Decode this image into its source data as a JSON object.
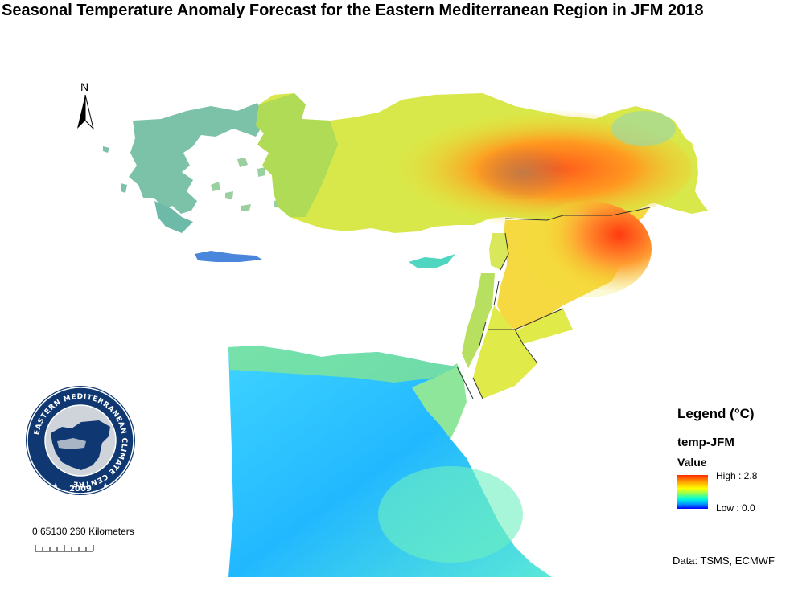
{
  "title": "Seasonal Temperature Anomaly Forecast for the Eastern Mediterranean Region in JFM 2018",
  "north_arrow": {
    "label": "N",
    "icon": "north-arrow-icon"
  },
  "logo": {
    "ring_text": "EASTERN MEDITERRANEAN CLIMATE CENTRE",
    "year": "2009",
    "colors": {
      "ring": "#0f3873",
      "map_fill": "#0f3873",
      "background": "#cfd3da"
    }
  },
  "scale_bar": {
    "labels": "0 65130   260 Kilometers"
  },
  "legend": {
    "title": "Legend (°C)",
    "layer": "temp-JFM",
    "field": "Value",
    "high_label": "High : 2.8",
    "low_label": "Low : 0.0",
    "range": [
      0.0,
      2.8
    ],
    "colors": [
      "#0000ff",
      "#00a0ff",
      "#00ffd8",
      "#8cff5a",
      "#ffff00",
      "#ffaa00",
      "#ff2a00"
    ]
  },
  "credit": "Data:  TSMS, ECMWF"
}
